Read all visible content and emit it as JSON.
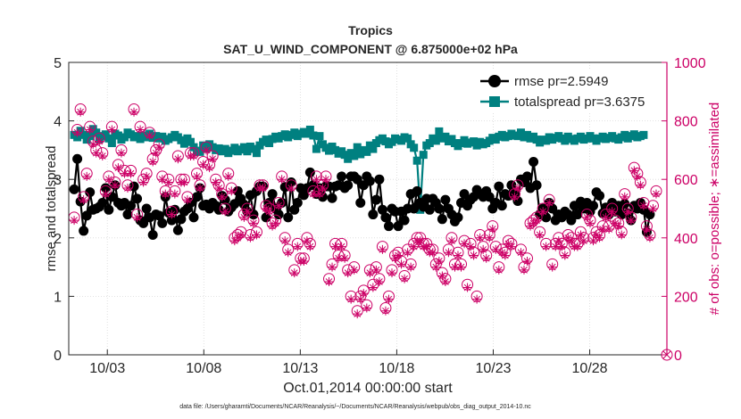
{
  "chart_data": {
    "type": "line",
    "title": "Tropics",
    "subtitle": "SAT_U_WIND_COMPONENT @ 6.875000e+02 hPa",
    "xlabel": "Oct.01,2014 00:00:00 start",
    "ylabel_left": "rmse and totalspread",
    "ylabel_right": "# of obs: o=possible; ∗=assimilated",
    "footer": "data file: /Users/gharamti/Documents/NCAR/Reanalysis/~/Documents/NCAR/Reanalysis/webpub/obs_diag_output_2014-10.nc",
    "xlim": [
      1,
      32
    ],
    "ylim_left": [
      0,
      5
    ],
    "ylim_right": [
      0,
      1000
    ],
    "x_ticks": [
      3,
      8,
      13,
      18,
      23,
      28
    ],
    "x_tick_labels": [
      "10/03",
      "10/08",
      "10/13",
      "10/18",
      "10/23",
      "10/28"
    ],
    "y_ticks_left": [
      0,
      1,
      2,
      3,
      4,
      5
    ],
    "y_ticks_right": [
      0,
      200,
      400,
      600,
      800,
      1000
    ],
    "colors": {
      "rmse": "#000000",
      "totalspread": "#008080",
      "obs": "#cc0066",
      "axis": "#262626"
    },
    "series": [
      {
        "name": "rmse",
        "legend": "rmse pr=2.5949",
        "axis": "left",
        "values": [
          2.83,
          3.35,
          2.62,
          2.12,
          2.38,
          2.78,
          2.48,
          2.5,
          2.53,
          2.6,
          2.85,
          2.48,
          2.7,
          2.9,
          2.6,
          2.55,
          2.6,
          2.4,
          2.55,
          2.88,
          2.67,
          2.3,
          2.25,
          2.5,
          2.35,
          2.05,
          2.4,
          2.38,
          2.25,
          2.7,
          2.43,
          2.3,
          2.48,
          2.13,
          2.32,
          2.45,
          2.5,
          2.6,
          2.35,
          2.7,
          2.85,
          2.55,
          2.57,
          2.5,
          2.6,
          2.55,
          2.48,
          2.72,
          2.65,
          2.45,
          2.52,
          2.58,
          2.8,
          2.67,
          2.57,
          2.45,
          2.73,
          2.4,
          2.8,
          2.88,
          2.88,
          2.35,
          2.6,
          2.75,
          2.5,
          2.4,
          2.6,
          2.87,
          2.35,
          2.95,
          2.48,
          2.6,
          2.85,
          2.73,
          2.85,
          3.12,
          2.9,
          2.75,
          2.85,
          2.7,
          2.88,
          2.88,
          2.68,
          2.88,
          2.9,
          3.05,
          2.85,
          2.9,
          3.05,
          3.05,
          3.0,
          2.6,
          2.9,
          3.05,
          2.97,
          2.4,
          2.65,
          3.0,
          2.48,
          2.35,
          2.2,
          2.5,
          2.45,
          2.2,
          2.45,
          2.3,
          2.5,
          2.75,
          2.5,
          2.8,
          2.6,
          2.53,
          2.67,
          2.48,
          2.67,
          2.6,
          2.5,
          2.32,
          2.65,
          2.5,
          2.4,
          2.28,
          2.35,
          2.6,
          2.75,
          2.55,
          2.65,
          2.7,
          2.82,
          2.75,
          2.7,
          2.8,
          2.7,
          2.5,
          2.6,
          2.88,
          2.55,
          2.75,
          2.72,
          2.9,
          2.75,
          2.63,
          3.0,
          2.95,
          3.05,
          2.85,
          3.3,
          2.9,
          2.4,
          2.5,
          2.35,
          2.6,
          2.5,
          2.3,
          2.4,
          2.35,
          2.45,
          2.4,
          2.3,
          2.55,
          2.4,
          2.62,
          2.5,
          2.6,
          2.45,
          2.55,
          2.78,
          2.72,
          2.42,
          2.52,
          2.4,
          2.6,
          2.45,
          2.55,
          2.4,
          2.58,
          2.42,
          2.3,
          2.55,
          2.5,
          2.6,
          2.48,
          2.1,
          2.4
        ]
      },
      {
        "name": "totalspread",
        "legend": "totalspread pr=3.6375",
        "axis": "left",
        "values": [
          3.76,
          3.72,
          3.83,
          3.76,
          3.68,
          3.74,
          3.86,
          3.8,
          3.69,
          3.74,
          3.77,
          3.7,
          3.62,
          3.78,
          3.75,
          3.68,
          3.72,
          3.8,
          3.77,
          3.72,
          3.74,
          3.69,
          3.75,
          3.72,
          3.78,
          3.71,
          3.74,
          3.7,
          3.73,
          3.66,
          3.69,
          3.72,
          3.76,
          3.72,
          3.67,
          3.61,
          3.7,
          3.64,
          3.55,
          3.49,
          3.47,
          3.58,
          3.52,
          3.6,
          3.55,
          3.5,
          3.53,
          3.48,
          3.52,
          3.45,
          3.49,
          3.54,
          3.48,
          3.51,
          3.55,
          3.48,
          3.56,
          3.52,
          3.45,
          3.58,
          3.64,
          3.68,
          3.62,
          3.69,
          3.73,
          3.7,
          3.74,
          3.77,
          3.72,
          3.76,
          3.8,
          3.74,
          3.78,
          3.81,
          3.78,
          3.85,
          3.75,
          3.52,
          3.74,
          3.6,
          3.54,
          3.49,
          3.56,
          3.5,
          3.44,
          3.48,
          3.42,
          3.35,
          3.45,
          3.4,
          3.55,
          3.43,
          3.5,
          3.47,
          3.58,
          3.52,
          3.62,
          3.67,
          3.7,
          3.65,
          3.6,
          3.64,
          3.7,
          3.68,
          3.66,
          3.72,
          3.7,
          3.6,
          3.54,
          3.32,
          2.48,
          3.42,
          3.58,
          3.62,
          3.7,
          3.66,
          3.82,
          3.7,
          3.73,
          3.65,
          3.69,
          3.62,
          3.57,
          3.62,
          3.67,
          3.61,
          3.63,
          3.65,
          3.58,
          3.64,
          3.6,
          3.62,
          3.66,
          3.71,
          3.68,
          3.73,
          3.76,
          3.72,
          3.74,
          3.78,
          3.75,
          3.74,
          3.8,
          3.72,
          3.76,
          3.7,
          3.73,
          3.68,
          3.63,
          3.68,
          3.66,
          3.72,
          3.68,
          3.71,
          3.74,
          3.7,
          3.66,
          3.73,
          3.69,
          3.66,
          3.7,
          3.73,
          3.68,
          3.7,
          3.74,
          3.7,
          3.66,
          3.7,
          3.73,
          3.69,
          3.71,
          3.74,
          3.7,
          3.68,
          3.72,
          3.76,
          3.7,
          3.74,
          3.77,
          3.72,
          3.74,
          3.76
        ]
      },
      {
        "name": "obs_possible",
        "axis": "right",
        "values": [
          470,
          770,
          840,
          540,
          620,
          780,
          730,
          700,
          740,
          690,
          560,
          610,
          780,
          590,
          650,
          700,
          630,
          580,
          630,
          840,
          480,
          780,
          600,
          620,
          760,
          670,
          700,
          720,
          610,
          560,
          600,
          490,
          560,
          680,
          600,
          600,
          540,
          690,
          690,
          620,
          580,
          660,
          710,
          650,
          680,
          600,
          580,
          550,
          500,
          620,
          570,
          400,
          410,
          420,
          480,
          500,
          410,
          460,
          420,
          580,
          580,
          510,
          500,
          450,
          460,
          520,
          610,
          400,
          360,
          580,
          290,
          380,
          330,
          330,
          400,
          380,
          560,
          610,
          560,
          580,
          610,
          260,
          310,
          380,
          340,
          380,
          340,
          290,
          200,
          300,
          150,
          200,
          220,
          170,
          290,
          240,
          300,
          260,
          370,
          160,
          200,
          290,
          340,
          350,
          320,
          270,
          360,
          310,
          380,
          400,
          400,
          380,
          380,
          360,
          360,
          310,
          330,
          280,
          260,
          360,
          400,
          310,
          350,
          310,
          390,
          240,
          380,
          350,
          200,
          410,
          370,
          340,
          410,
          440,
          370,
          300,
          360,
          350,
          390,
          380,
          550,
          580,
          360,
          300,
          330,
          450,
          460,
          470,
          420,
          500,
          380,
          530,
          310,
          380,
          400,
          380,
          350,
          410,
          400,
          380,
          380,
          420,
          400,
          480,
          460,
          400,
          420,
          410,
          440,
          480,
          440,
          500,
          460,
          450,
          420,
          550,
          500,
          470,
          640,
          620,
          590,
          520,
          440,
          410,
          510,
          560
        ]
      },
      {
        "name": "obs_assimilated",
        "axis": "right",
        "values": [
          460,
          760,
          830,
          530,
          610,
          770,
          720,
          690,
          730,
          680,
          550,
          600,
          770,
          580,
          640,
          690,
          620,
          570,
          620,
          830,
          470,
          770,
          590,
          610,
          750,
          660,
          690,
          710,
          600,
          550,
          590,
          480,
          550,
          670,
          590,
          590,
          530,
          680,
          680,
          610,
          570,
          650,
          700,
          640,
          670,
          590,
          570,
          540,
          490,
          610,
          560,
          390,
          400,
          410,
          470,
          490,
          400,
          450,
          410,
          570,
          570,
          500,
          490,
          440,
          450,
          510,
          600,
          390,
          350,
          570,
          280,
          370,
          320,
          320,
          390,
          370,
          550,
          600,
          550,
          570,
          600,
          250,
          300,
          370,
          330,
          370,
          330,
          280,
          190,
          290,
          140,
          190,
          210,
          160,
          280,
          230,
          290,
          250,
          360,
          150,
          190,
          280,
          330,
          340,
          310,
          260,
          350,
          300,
          370,
          390,
          390,
          370,
          370,
          350,
          350,
          300,
          320,
          270,
          250,
          350,
          390,
          300,
          340,
          300,
          380,
          230,
          370,
          340,
          190,
          400,
          360,
          330,
          400,
          430,
          360,
          290,
          350,
          340,
          380,
          370,
          540,
          570,
          350,
          290,
          320,
          440,
          450,
          460,
          410,
          490,
          370,
          520,
          300,
          370,
          390,
          370,
          340,
          400,
          390,
          370,
          370,
          410,
          390,
          470,
          450,
          390,
          410,
          400,
          430,
          470,
          430,
          490,
          450,
          440,
          410,
          540,
          490,
          460,
          630,
          610,
          580,
          510,
          430,
          400,
          500,
          550
        ]
      }
    ],
    "extra_point_right": {
      "x": 32,
      "value": 0
    }
  }
}
